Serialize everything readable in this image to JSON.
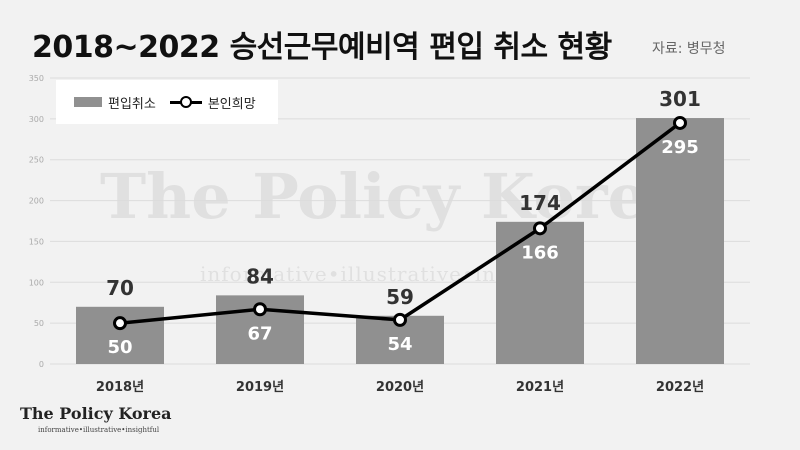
{
  "header": {
    "title": "2018~2022 승선근무예비역 편입 취소 현황",
    "source": "자료: 병무청"
  },
  "watermark": {
    "main": "The Policy Korea",
    "sub": "informative•illustrative•insightful"
  },
  "logo": {
    "name": "The Policy Korea",
    "tagline": "informative•illustrative•insightful"
  },
  "legend": {
    "bar_label": "편입취소",
    "line_label": "본인희망"
  },
  "colors": {
    "bar": "#909090",
    "line": "#000000",
    "marker_fill": "#ffffff",
    "background": "#f2f2f2"
  },
  "chart_data": {
    "type": "bar",
    "categories": [
      "2018년",
      "2019년",
      "2020년",
      "2021년",
      "2022년"
    ],
    "series": [
      {
        "name": "편입취소",
        "type": "bar",
        "values": [
          70,
          84,
          59,
          174,
          301
        ]
      },
      {
        "name": "본인희망",
        "type": "line",
        "values": [
          50,
          67,
          54,
          166,
          295
        ]
      }
    ],
    "yticks": [
      0,
      50,
      100,
      150,
      200,
      250,
      300,
      350
    ],
    "ylim": [
      0,
      350
    ],
    "grid": true,
    "legend_position": "top-left"
  }
}
